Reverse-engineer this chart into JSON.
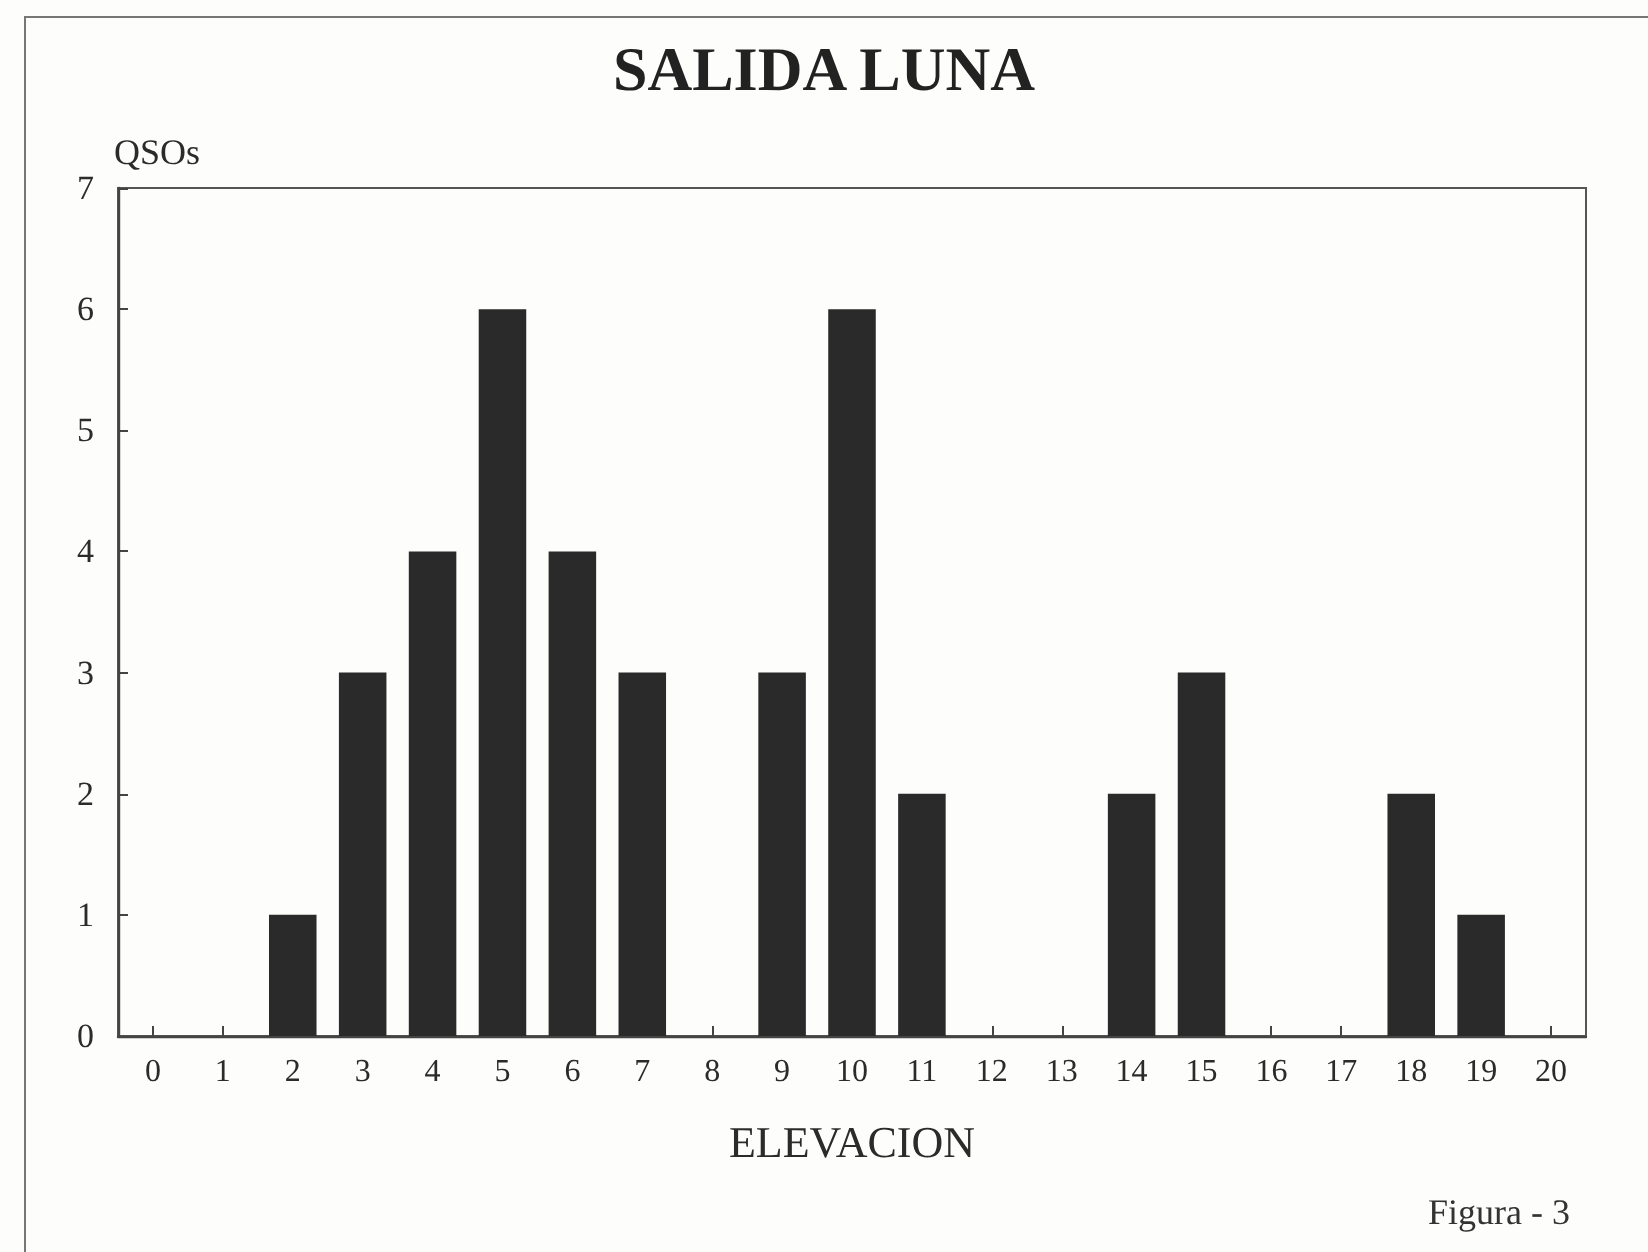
{
  "chart_data": {
    "type": "bar",
    "title": "SALIDA LUNA",
    "ylabel": "QSOs",
    "xlabel": "ELEVACION",
    "annotations": [
      "Figura - 3"
    ],
    "categories": [
      "0",
      "1",
      "2",
      "3",
      "4",
      "5",
      "6",
      "7",
      "8",
      "9",
      "10",
      "11",
      "12",
      "13",
      "14",
      "15",
      "16",
      "17",
      "18",
      "19",
      "20"
    ],
    "values": [
      0,
      0,
      1,
      3,
      4,
      6,
      4,
      3,
      0,
      3,
      6,
      2,
      0,
      0,
      2,
      3,
      0,
      0,
      2,
      1,
      0
    ],
    "color": "#2a2a2a",
    "ylim": [
      0,
      7
    ],
    "yticks": [
      0,
      1,
      2,
      3,
      4,
      5,
      6,
      7
    ]
  }
}
